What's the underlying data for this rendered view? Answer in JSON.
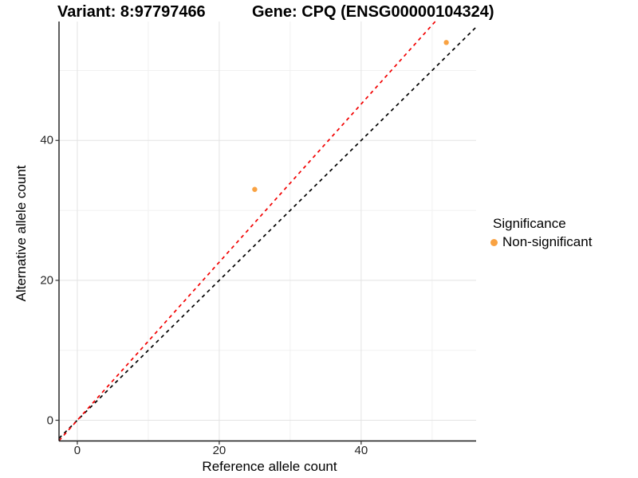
{
  "header": {
    "variant_title": "Variant: 8:97797466",
    "gene_title": "Gene: CPQ (ENSG00000104324)"
  },
  "chart_data": {
    "type": "scatter",
    "title": "Variant: 8:97797466  /  Gene: CPQ (ENSG00000104324)",
    "xlabel": "Reference allele count",
    "ylabel": "Alternative allele count",
    "x_ticks": [
      0,
      20,
      40
    ],
    "y_ticks": [
      0,
      20,
      40
    ],
    "x_minor_gridlines": [
      10,
      30,
      50
    ],
    "y_minor_gridlines": [
      10,
      30,
      50
    ],
    "xlim": [
      -2.58,
      56.2
    ],
    "ylim": [
      -2.96,
      57.0
    ],
    "grid": true,
    "series": [
      {
        "name": "Non-significant",
        "color": "#F9A242",
        "points": [
          {
            "x": 25,
            "y": 33
          },
          {
            "x": 52,
            "y": 54
          }
        ]
      }
    ],
    "lines": [
      {
        "name": "identity-line",
        "style": "dashed",
        "color": "#000000",
        "slope": 1.0,
        "intercept": 0
      },
      {
        "name": "expected-ratio-line",
        "style": "dashed",
        "color": "#F20000",
        "slope": 1.13,
        "intercept": 0
      }
    ],
    "legend": {
      "title": "Significance",
      "position": "right",
      "items": [
        {
          "label": "Non-significant",
          "color": "#F9A242"
        }
      ]
    },
    "colors": {
      "major_gridline": "#E3E3E3",
      "minor_gridline": "#F1F1F1",
      "axis_line": "#1A1A1A",
      "tick_mark": "#333333",
      "background": "#FFFFFF"
    }
  }
}
